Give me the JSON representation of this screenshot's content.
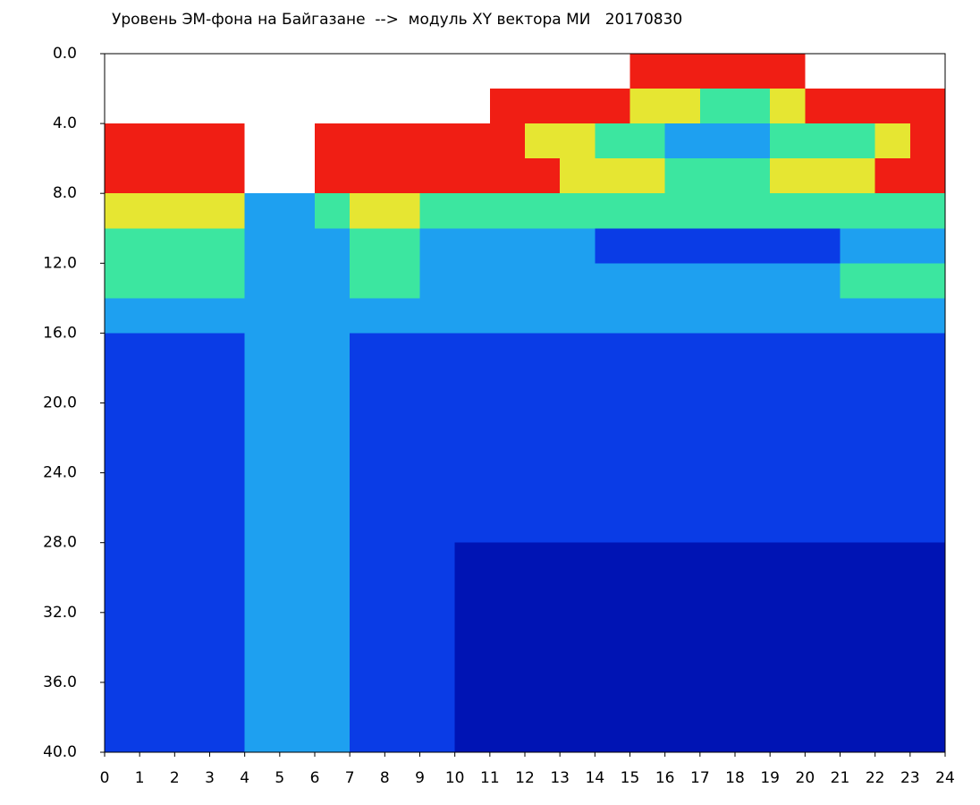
{
  "chart_data": {
    "type": "heatmap",
    "title": "Уровень ЭМ-фона на Байгазане  -->  модуль XY вектора МИ   20170830",
    "x_bins": [
      0,
      1,
      2,
      3,
      4,
      5,
      6,
      7,
      8,
      9,
      10,
      11,
      12,
      13,
      14,
      15,
      16,
      17,
      18,
      19,
      20,
      21,
      22,
      23,
      24
    ],
    "y_bins": [
      0,
      2,
      4,
      6,
      8,
      10,
      12,
      14,
      16,
      18,
      20,
      22,
      24,
      26,
      28,
      30,
      32,
      34,
      36,
      38,
      40
    ],
    "xlim": [
      0,
      24
    ],
    "ylim": [
      0,
      40
    ],
    "y_inverted": true,
    "xticks": [
      0,
      1,
      2,
      3,
      4,
      5,
      6,
      7,
      8,
      9,
      10,
      11,
      12,
      13,
      14,
      15,
      16,
      17,
      18,
      19,
      20,
      21,
      22,
      23,
      24
    ],
    "yticks": [
      {
        "value": 0,
        "label": "0.0"
      },
      {
        "value": 4,
        "label": "4.0"
      },
      {
        "value": 8,
        "label": "8.0"
      },
      {
        "value": 12,
        "label": "12.0"
      },
      {
        "value": 16,
        "label": "16.0"
      },
      {
        "value": 20,
        "label": "20.0"
      },
      {
        "value": 24,
        "label": "24.0"
      },
      {
        "value": 28,
        "label": "28.0"
      },
      {
        "value": 32,
        "label": "32.0"
      },
      {
        "value": 36,
        "label": "36.0"
      },
      {
        "value": 40,
        "label": "40.0"
      }
    ],
    "colors": [
      "#0014b4",
      "#0a3ce6",
      "#1ea0f0",
      "#3ce6a0",
      "#e6e632",
      "#f01e14"
    ],
    "values": [
      [
        null,
        null,
        null,
        null,
        null,
        null,
        null,
        null,
        null,
        null,
        null,
        null,
        null,
        null,
        null,
        6,
        6,
        6,
        6,
        6,
        null,
        null,
        null,
        null
      ],
      [
        null,
        null,
        null,
        null,
        null,
        null,
        null,
        null,
        null,
        null,
        null,
        6,
        6,
        6,
        6,
        5,
        5,
        4,
        4,
        5,
        6,
        6,
        6,
        6
      ],
      [
        6,
        6,
        6,
        6,
        null,
        null,
        6,
        6,
        6,
        6,
        6,
        6,
        5,
        5,
        4,
        4,
        3,
        3,
        3,
        4,
        4,
        4,
        5,
        6
      ],
      [
        6,
        6,
        6,
        6,
        null,
        null,
        6,
        6,
        6,
        6,
        6,
        6,
        6,
        5,
        5,
        5,
        4,
        4,
        4,
        5,
        5,
        5,
        6,
        6
      ],
      [
        5,
        5,
        5,
        5,
        3,
        3,
        4,
        5,
        5,
        4,
        4,
        4,
        4,
        4,
        4,
        4,
        4,
        4,
        4,
        4,
        4,
        4,
        4,
        4
      ],
      [
        4,
        4,
        4,
        4,
        3,
        3,
        3,
        4,
        4,
        3,
        3,
        3,
        3,
        3,
        2,
        2,
        2,
        2,
        2,
        2,
        2,
        3,
        3,
        3
      ],
      [
        4,
        4,
        4,
        4,
        3,
        3,
        3,
        4,
        4,
        3,
        3,
        3,
        3,
        3,
        3,
        3,
        3,
        3,
        3,
        3,
        3,
        4,
        4,
        4
      ],
      [
        3,
        3,
        3,
        3,
        3,
        3,
        3,
        3,
        3,
        3,
        3,
        3,
        3,
        3,
        3,
        3,
        3,
        3,
        3,
        3,
        3,
        3,
        3,
        3
      ],
      [
        2,
        2,
        2,
        2,
        3,
        3,
        3,
        2,
        2,
        2,
        2,
        2,
        2,
        2,
        2,
        2,
        2,
        2,
        2,
        2,
        2,
        2,
        2,
        2
      ],
      [
        2,
        2,
        2,
        2,
        3,
        3,
        3,
        2,
        2,
        2,
        2,
        2,
        2,
        2,
        2,
        2,
        2,
        2,
        2,
        2,
        2,
        2,
        2,
        2
      ],
      [
        2,
        2,
        2,
        2,
        3,
        3,
        3,
        2,
        2,
        2,
        2,
        2,
        2,
        2,
        2,
        2,
        2,
        2,
        2,
        2,
        2,
        2,
        2,
        2
      ],
      [
        2,
        2,
        2,
        2,
        3,
        3,
        3,
        2,
        2,
        2,
        2,
        2,
        2,
        2,
        2,
        2,
        2,
        2,
        2,
        2,
        2,
        2,
        2,
        2
      ],
      [
        2,
        2,
        2,
        2,
        3,
        3,
        3,
        2,
        2,
        2,
        2,
        2,
        2,
        2,
        2,
        2,
        2,
        2,
        2,
        2,
        2,
        2,
        2,
        2
      ],
      [
        2,
        2,
        2,
        2,
        3,
        3,
        3,
        2,
        2,
        2,
        2,
        2,
        2,
        2,
        2,
        2,
        2,
        2,
        2,
        2,
        2,
        2,
        2,
        2
      ],
      [
        2,
        2,
        2,
        2,
        3,
        3,
        3,
        2,
        2,
        2,
        1,
        1,
        1,
        1,
        1,
        1,
        1,
        1,
        1,
        1,
        1,
        1,
        1,
        1
      ],
      [
        2,
        2,
        2,
        2,
        3,
        3,
        3,
        2,
        2,
        2,
        1,
        1,
        1,
        1,
        1,
        1,
        1,
        1,
        1,
        1,
        1,
        1,
        1,
        1
      ],
      [
        2,
        2,
        2,
        2,
        3,
        3,
        3,
        2,
        2,
        2,
        1,
        1,
        1,
        1,
        1,
        1,
        1,
        1,
        1,
        1,
        1,
        1,
        1,
        1
      ],
      [
        2,
        2,
        2,
        2,
        3,
        3,
        3,
        2,
        2,
        2,
        1,
        1,
        1,
        1,
        1,
        1,
        1,
        1,
        1,
        1,
        1,
        1,
        1,
        1
      ],
      [
        2,
        2,
        2,
        2,
        3,
        3,
        3,
        2,
        2,
        2,
        1,
        1,
        1,
        1,
        1,
        1,
        1,
        1,
        1,
        1,
        1,
        1,
        1,
        1
      ],
      [
        2,
        2,
        2,
        2,
        3,
        3,
        3,
        2,
        2,
        2,
        1,
        1,
        1,
        1,
        1,
        1,
        1,
        1,
        1,
        1,
        1,
        1,
        1,
        1
      ]
    ]
  }
}
